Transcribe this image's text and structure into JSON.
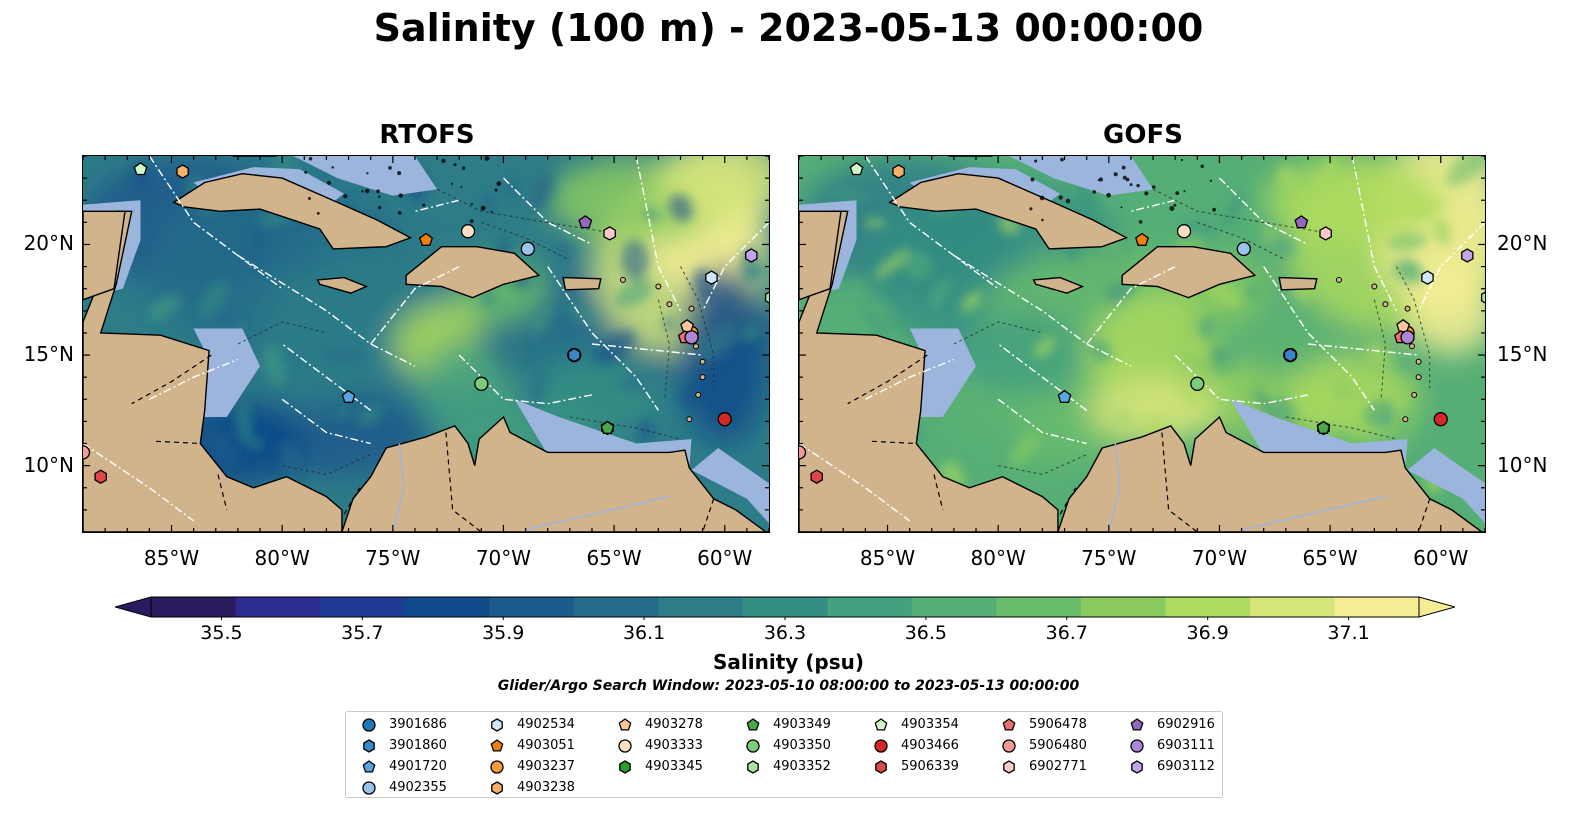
{
  "title": "Salinity (100 m) - 2023-05-13 00:00:00",
  "panels": [
    {
      "title": "RTOFS",
      "model": "rtofs"
    },
    {
      "title": "GOFS",
      "model": "gofs"
    }
  ],
  "axes": {
    "lon_ticks": [
      "85°W",
      "80°W",
      "75°W",
      "70°W",
      "65°W",
      "60°W"
    ],
    "lat_ticks": [
      "20°N",
      "15°N",
      "10°N"
    ],
    "lon_range": [
      -89,
      -58
    ],
    "lat_range": [
      7,
      24
    ]
  },
  "colorbar": {
    "label": "Salinity (psu)",
    "ticks": [
      "35.5",
      "35.7",
      "35.9",
      "36.1",
      "36.3",
      "36.5",
      "36.7",
      "36.9",
      "37.1"
    ],
    "range": [
      35.4,
      37.2
    ],
    "colors": [
      "#2a1a5e",
      "#2b2c8e",
      "#1f3b93",
      "#104a8a",
      "#1c5b8c",
      "#256c8a",
      "#2d7c88",
      "#358e84",
      "#44a07f",
      "#55ae76",
      "#69bc6c",
      "#8aca60",
      "#addb5e",
      "#d6e57a",
      "#f5ed95"
    ],
    "extend": "both"
  },
  "search_window": "Glider/Argo Search Window: 2023-05-10 08:00:00 to 2023-05-13 00:00:00",
  "colors": {
    "land": "#d2b48c",
    "shelf": "#9bb5dd",
    "deep_pacific": "#2a1a5e"
  },
  "floats": [
    {
      "id": "3901686",
      "marker": "circle",
      "color": "#1f77b4",
      "lon": -66.8,
      "lat": 15.0
    },
    {
      "id": "3901860",
      "marker": "hexagon",
      "color": "#3a86c8",
      "lon": -66.8,
      "lat": 15.0
    },
    {
      "id": "4901720",
      "marker": "pentagon",
      "color": "#5aa5e0",
      "lon": -77.0,
      "lat": 13.1
    },
    {
      "id": "4902355",
      "marker": "circle",
      "color": "#99c5ec",
      "lon": -68.9,
      "lat": 19.8
    },
    {
      "id": "4902534",
      "marker": "hexagon",
      "color": "#cfe6fb",
      "lon": -60.6,
      "lat": 18.5
    },
    {
      "id": "4903051",
      "marker": "pentagon",
      "color": "#f07f10",
      "lon": -73.5,
      "lat": 20.2
    },
    {
      "id": "4903237",
      "marker": "circle",
      "color": "#f39b3e",
      "lon": -61.5,
      "lat": 16.0
    },
    {
      "id": "4903238",
      "marker": "hexagon",
      "color": "#f8b06b",
      "lon": -84.5,
      "lat": 23.3
    },
    {
      "id": "4903278",
      "marker": "pentagon",
      "color": "#f9c89b",
      "lon": -61.7,
      "lat": 16.3
    },
    {
      "id": "4903333",
      "marker": "circle",
      "color": "#fde0c3",
      "lon": -71.6,
      "lat": 20.6
    },
    {
      "id": "4903345",
      "marker": "hexagon",
      "color": "#2e9b2e",
      "lon": -65.3,
      "lat": 11.7
    },
    {
      "id": "4903349",
      "marker": "pentagon",
      "color": "#4aa84a",
      "lon": -65.3,
      "lat": 11.7
    },
    {
      "id": "4903350",
      "marker": "circle",
      "color": "#7ccc7c",
      "lon": -71.0,
      "lat": 13.7
    },
    {
      "id": "4903352",
      "marker": "hexagon",
      "color": "#a8e6a0",
      "lon": -57.9,
      "lat": 17.6
    },
    {
      "id": "4903354",
      "marker": "pentagon",
      "color": "#d3f8c8",
      "lon": -86.4,
      "lat": 23.4
    },
    {
      "id": "4903466",
      "marker": "circle",
      "color": "#d62728",
      "lon": -60.0,
      "lat": 12.1
    },
    {
      "id": "5906339",
      "marker": "hexagon",
      "color": "#e04848",
      "lon": -88.2,
      "lat": 9.5
    },
    {
      "id": "5906478",
      "marker": "pentagon",
      "color": "#e8716c",
      "lon": -61.8,
      "lat": 15.8
    },
    {
      "id": "5906480",
      "marker": "circle",
      "color": "#f19a96",
      "lon": -89.0,
      "lat": 10.6
    },
    {
      "id": "6902771",
      "marker": "hexagon",
      "color": "#fbc9c5",
      "lon": -65.2,
      "lat": 20.5
    },
    {
      "id": "6902916",
      "marker": "pentagon",
      "color": "#9467bd",
      "lon": -66.3,
      "lat": 21.0
    },
    {
      "id": "6903111",
      "marker": "circle",
      "color": "#ae86d6",
      "lon": -61.5,
      "lat": 15.8
    },
    {
      "id": "6903112",
      "marker": "hexagon",
      "color": "#c4a3ea",
      "lon": -58.8,
      "lat": 19.5
    }
  ]
}
